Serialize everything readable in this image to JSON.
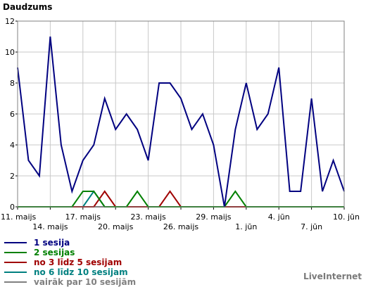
{
  "chart_data": {
    "type": "line",
    "title": "Daudzums",
    "ylim": [
      0,
      12
    ],
    "yticks": [
      0,
      2,
      4,
      6,
      8,
      10,
      12
    ],
    "x_count": 31,
    "x_tick_labels": [
      {
        "index": 0,
        "label": "11. maijs"
      },
      {
        "index": 3,
        "label": "14. maijs"
      },
      {
        "index": 6,
        "label": "17. maijs"
      },
      {
        "index": 9,
        "label": "20. maijs"
      },
      {
        "index": 12,
        "label": "23. maijs"
      },
      {
        "index": 15,
        "label": "26. maijs"
      },
      {
        "index": 18,
        "label": "29. maijs"
      },
      {
        "index": 21,
        "label": "1. jūn"
      },
      {
        "index": 24,
        "label": "4. jūn"
      },
      {
        "index": 27,
        "label": "7. jūn"
      },
      {
        "index": 30,
        "label": "10. jūn"
      }
    ],
    "grid": true,
    "series": [
      {
        "name": "1 sesija",
        "color": "#000080",
        "values": [
          9,
          3,
          2,
          11,
          4,
          1,
          3,
          4,
          7,
          5,
          6,
          5,
          3,
          8,
          8,
          7,
          5,
          6,
          4,
          0,
          5,
          8,
          5,
          6,
          9,
          1,
          1,
          7,
          1,
          3,
          1
        ]
      },
      {
        "name": "2 sesijas",
        "color": "#008000",
        "values": [
          0,
          0,
          0,
          0,
          0,
          0,
          1,
          1,
          0,
          0,
          0,
          1,
          0,
          0,
          0,
          0,
          0,
          0,
          0,
          0,
          1,
          0,
          0,
          0,
          0,
          0,
          0,
          0,
          0,
          0,
          0
        ]
      },
      {
        "name": "no 3 līdz 5 sesijam",
        "color": "#a00000",
        "values": [
          0,
          0,
          0,
          0,
          0,
          0,
          0,
          0,
          1,
          0,
          0,
          0,
          0,
          0,
          1,
          0,
          0,
          0,
          0,
          0,
          0,
          0,
          0,
          0,
          0,
          0,
          0,
          0,
          0,
          0,
          0
        ]
      },
      {
        "name": "no 6 līdz 10 sesijam",
        "color": "#008080",
        "values": [
          0,
          0,
          0,
          0,
          0,
          0,
          0,
          1,
          0,
          0,
          0,
          0,
          0,
          0,
          0,
          0,
          0,
          0,
          0,
          0,
          0,
          0,
          0,
          0,
          0,
          0,
          0,
          0,
          0,
          0,
          0
        ]
      },
      {
        "name": "vairāk par 10 sesijām",
        "color": "#808080",
        "values": [
          0,
          0,
          0,
          0,
          0,
          0,
          0,
          0,
          0,
          0,
          0,
          0,
          0,
          0,
          0,
          0,
          0,
          0,
          0,
          0,
          0,
          0,
          0,
          0,
          0,
          0,
          0,
          0,
          0,
          0,
          0
        ]
      }
    ]
  },
  "brand": "LiveInternet"
}
